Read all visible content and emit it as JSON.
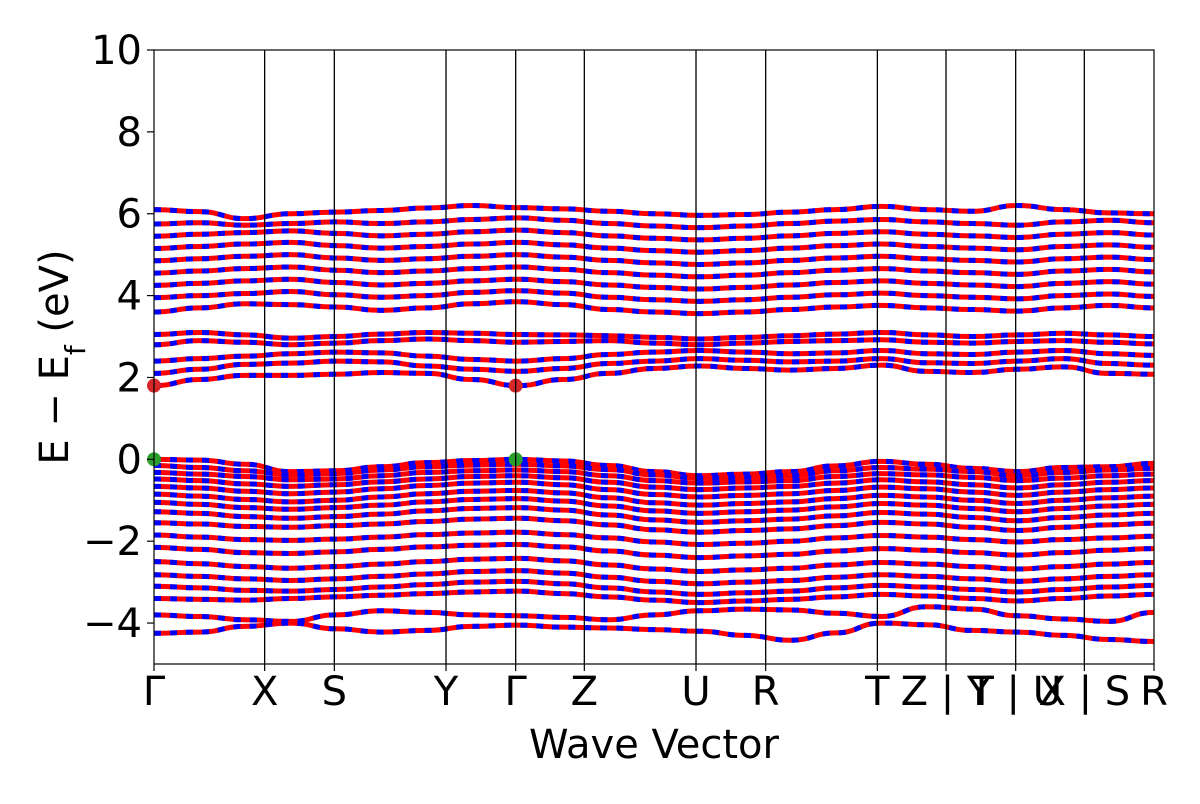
{
  "chart_data": {
    "type": "line",
    "xlabel": "Wave Vector",
    "ylabel": "E − E",
    "ylabel_subscript": "f",
    "ylabel_unit": " (eV)",
    "ylim": [
      -5,
      10
    ],
    "yticks": [
      -4,
      -2,
      0,
      2,
      4,
      6,
      8,
      10
    ],
    "ytick_labels": [
      "−4",
      "−2",
      "0",
      "2",
      "4",
      "6",
      "8",
      "10"
    ],
    "kpath_positions": [
      0,
      1.08,
      1.76,
      2.85,
      3.53,
      4.2,
      5.29,
      5.97,
      7.06,
      7.73,
      8.41,
      9.08,
      9.76
    ],
    "kpath_labels": [
      "Γ",
      "X",
      "S",
      "Y",
      "Γ",
      "Z",
      "U",
      "R",
      "T",
      "Z | Y",
      "T | U",
      "X | S",
      "R"
    ],
    "series_colors": [
      "#ff0000",
      "#0000ff"
    ],
    "marker_colors": {
      "cbm": "#d62728",
      "vbm": "#2ca02c"
    },
    "valence_bands": [
      [
        -0.0,
        -0.02,
        -0.12,
        -0.3,
        -0.28,
        -0.18,
        -0.08,
        -0.03,
        0.0,
        -0.04,
        -0.15,
        -0.3,
        -0.4,
        -0.36,
        -0.3,
        -0.16,
        -0.05,
        -0.12,
        -0.22,
        -0.3,
        -0.2,
        -0.18,
        -0.1
      ],
      [
        -0.15,
        -0.2,
        -0.28,
        -0.38,
        -0.35,
        -0.26,
        -0.18,
        -0.14,
        -0.12,
        -0.16,
        -0.25,
        -0.38,
        -0.46,
        -0.44,
        -0.4,
        -0.28,
        -0.2,
        -0.24,
        -0.3,
        -0.4,
        -0.32,
        -0.26,
        -0.22
      ],
      [
        -0.32,
        -0.36,
        -0.42,
        -0.5,
        -0.48,
        -0.4,
        -0.32,
        -0.28,
        -0.26,
        -0.3,
        -0.4,
        -0.52,
        -0.58,
        -0.55,
        -0.52,
        -0.42,
        -0.35,
        -0.38,
        -0.44,
        -0.52,
        -0.46,
        -0.4,
        -0.36
      ],
      [
        -0.48,
        -0.52,
        -0.6,
        -0.66,
        -0.62,
        -0.55,
        -0.48,
        -0.42,
        -0.4,
        -0.45,
        -0.56,
        -0.68,
        -0.74,
        -0.7,
        -0.66,
        -0.58,
        -0.5,
        -0.55,
        -0.62,
        -0.7,
        -0.62,
        -0.56,
        -0.52
      ],
      [
        -0.66,
        -0.7,
        -0.78,
        -0.84,
        -0.8,
        -0.72,
        -0.64,
        -0.58,
        -0.56,
        -0.62,
        -0.74,
        -0.86,
        -0.92,
        -0.88,
        -0.84,
        -0.76,
        -0.68,
        -0.72,
        -0.8,
        -0.88,
        -0.8,
        -0.74,
        -0.7
      ],
      [
        -0.85,
        -0.9,
        -0.98,
        -1.04,
        -1.0,
        -0.92,
        -0.84,
        -0.78,
        -0.76,
        -0.82,
        -0.94,
        -1.06,
        -1.12,
        -1.08,
        -1.04,
        -0.96,
        -0.88,
        -0.92,
        -1.0,
        -1.08,
        -1.0,
        -0.94,
        -0.9
      ],
      [
        -1.05,
        -1.1,
        -1.18,
        -1.22,
        -1.18,
        -1.12,
        -1.04,
        -0.98,
        -0.96,
        -1.02,
        -1.14,
        -1.26,
        -1.32,
        -1.28,
        -1.24,
        -1.16,
        -1.08,
        -1.12,
        -1.2,
        -1.28,
        -1.2,
        -1.14,
        -1.1
      ],
      [
        -1.28,
        -1.32,
        -1.4,
        -1.44,
        -1.4,
        -1.34,
        -1.26,
        -1.2,
        -1.18,
        -1.24,
        -1.36,
        -1.48,
        -1.54,
        -1.5,
        -1.46,
        -1.38,
        -1.3,
        -1.34,
        -1.42,
        -1.5,
        -1.42,
        -1.36,
        -1.32
      ],
      [
        -1.55,
        -1.58,
        -1.64,
        -1.66,
        -1.62,
        -1.58,
        -1.52,
        -1.46,
        -1.44,
        -1.5,
        -1.6,
        -1.72,
        -1.78,
        -1.74,
        -1.7,
        -1.62,
        -1.54,
        -1.58,
        -1.66,
        -1.74,
        -1.66,
        -1.6,
        -1.56
      ],
      [
        -1.85,
        -1.9,
        -1.96,
        -1.98,
        -1.95,
        -1.9,
        -1.84,
        -1.8,
        -1.78,
        -1.84,
        -1.92,
        -2.02,
        -2.08,
        -2.05,
        -2.0,
        -1.92,
        -1.86,
        -1.9,
        -1.96,
        -2.02,
        -1.96,
        -1.92,
        -1.88
      ],
      [
        -2.15,
        -2.2,
        -2.28,
        -2.3,
        -2.26,
        -2.2,
        -2.14,
        -2.1,
        -2.08,
        -2.14,
        -2.24,
        -2.34,
        -2.4,
        -2.36,
        -2.32,
        -2.24,
        -2.18,
        -2.22,
        -2.28,
        -2.34,
        -2.28,
        -2.22,
        -2.18
      ],
      [
        -2.5,
        -2.55,
        -2.62,
        -2.66,
        -2.62,
        -2.56,
        -2.5,
        -2.44,
        -2.42,
        -2.48,
        -2.58,
        -2.68,
        -2.74,
        -2.7,
        -2.66,
        -2.58,
        -2.52,
        -2.56,
        -2.62,
        -2.68,
        -2.62,
        -2.56,
        -2.52
      ],
      [
        -2.82,
        -2.86,
        -2.92,
        -2.96,
        -2.92,
        -2.86,
        -2.8,
        -2.74,
        -2.72,
        -2.78,
        -2.88,
        -2.98,
        -3.04,
        -3.0,
        -2.96,
        -2.88,
        -2.82,
        -2.86,
        -2.92,
        -2.98,
        -2.92,
        -2.86,
        -2.82
      ],
      [
        -3.1,
        -3.14,
        -3.2,
        -3.22,
        -3.18,
        -3.12,
        -3.06,
        -3.0,
        -2.98,
        -3.04,
        -3.14,
        -3.24,
        -3.3,
        -3.26,
        -3.22,
        -3.14,
        -3.08,
        -3.12,
        -3.18,
        -3.24,
        -3.18,
        -3.12,
        -3.08
      ],
      [
        -3.4,
        -3.42,
        -3.44,
        -3.4,
        -3.36,
        -3.32,
        -3.28,
        -3.24,
        -3.22,
        -3.28,
        -3.36,
        -3.44,
        -3.5,
        -3.46,
        -3.42,
        -3.36,
        -3.3,
        -3.34,
        -3.4,
        -3.46,
        -3.4,
        -3.34,
        -3.3
      ],
      [
        -3.8,
        -3.84,
        -3.92,
        -3.96,
        -3.8,
        -3.7,
        -3.74,
        -3.8,
        -3.82,
        -3.86,
        -3.92,
        -3.8,
        -3.7,
        -3.66,
        -3.68,
        -3.76,
        -3.84,
        -3.6,
        -3.66,
        -3.82,
        -3.9,
        -3.96,
        -3.74
      ],
      [
        -4.25,
        -4.22,
        -4.08,
        -4.0,
        -4.14,
        -4.22,
        -4.18,
        -4.08,
        -4.05,
        -4.1,
        -4.12,
        -4.16,
        -4.2,
        -4.3,
        -4.42,
        -4.24,
        -4.0,
        -4.04,
        -4.18,
        -4.22,
        -4.3,
        -4.4,
        -4.45
      ]
    ],
    "conduction_bands": [
      [
        1.8,
        1.95,
        2.05,
        2.05,
        2.08,
        2.12,
        2.1,
        1.95,
        1.8,
        1.95,
        2.1,
        2.22,
        2.28,
        2.22,
        2.18,
        2.22,
        2.3,
        2.15,
        2.12,
        2.2,
        2.26,
        2.1,
        2.08
      ],
      [
        2.1,
        2.2,
        2.32,
        2.35,
        2.4,
        2.38,
        2.28,
        2.2,
        2.15,
        2.22,
        2.34,
        2.4,
        2.46,
        2.42,
        2.38,
        2.4,
        2.46,
        2.36,
        2.34,
        2.4,
        2.46,
        2.34,
        2.3
      ],
      [
        2.4,
        2.46,
        2.52,
        2.58,
        2.62,
        2.6,
        2.52,
        2.44,
        2.4,
        2.46,
        2.56,
        2.62,
        2.66,
        2.62,
        2.58,
        2.6,
        2.66,
        2.58,
        2.56,
        2.62,
        2.66,
        2.58,
        2.54
      ],
      [
        2.8,
        2.9,
        2.86,
        2.8,
        2.84,
        2.9,
        2.94,
        2.9,
        2.86,
        2.88,
        2.9,
        2.84,
        2.8,
        2.84,
        2.88,
        2.9,
        2.92,
        2.86,
        2.84,
        2.88,
        2.9,
        2.86,
        2.82
      ],
      [
        3.05,
        3.1,
        3.04,
        2.96,
        3.0,
        3.06,
        3.1,
        3.08,
        3.05,
        3.04,
        3.02,
        2.98,
        2.94,
        2.98,
        3.02,
        3.06,
        3.1,
        3.04,
        3.0,
        3.04,
        3.08,
        3.04,
        3.0
      ],
      [
        3.6,
        3.7,
        3.8,
        3.78,
        3.72,
        3.64,
        3.7,
        3.8,
        3.85,
        3.78,
        3.66,
        3.6,
        3.56,
        3.6,
        3.66,
        3.72,
        3.76,
        3.7,
        3.66,
        3.62,
        3.7,
        3.76,
        3.7
      ],
      [
        3.95,
        4.0,
        4.05,
        4.1,
        4.02,
        3.96,
        4.0,
        4.08,
        4.12,
        4.06,
        3.96,
        3.9,
        3.86,
        3.9,
        3.96,
        4.02,
        4.06,
        4.0,
        3.96,
        3.92,
        4.0,
        4.04,
        3.98
      ],
      [
        4.25,
        4.3,
        4.36,
        4.4,
        4.32,
        4.26,
        4.3,
        4.36,
        4.4,
        4.34,
        4.26,
        4.2,
        4.16,
        4.2,
        4.26,
        4.32,
        4.36,
        4.3,
        4.26,
        4.22,
        4.3,
        4.34,
        4.28
      ],
      [
        4.55,
        4.6,
        4.66,
        4.7,
        4.62,
        4.56,
        4.6,
        4.66,
        4.7,
        4.64,
        4.56,
        4.5,
        4.46,
        4.5,
        4.56,
        4.62,
        4.66,
        4.6,
        4.56,
        4.52,
        4.6,
        4.64,
        4.58
      ],
      [
        4.85,
        4.9,
        4.96,
        5.0,
        4.92,
        4.86,
        4.9,
        4.96,
        5.0,
        4.94,
        4.86,
        4.8,
        4.76,
        4.8,
        4.86,
        4.92,
        4.96,
        4.9,
        4.86,
        4.82,
        4.9,
        4.94,
        4.88
      ],
      [
        5.15,
        5.2,
        5.26,
        5.3,
        5.22,
        5.16,
        5.2,
        5.26,
        5.3,
        5.24,
        5.16,
        5.1,
        5.06,
        5.1,
        5.16,
        5.22,
        5.26,
        5.2,
        5.16,
        5.12,
        5.2,
        5.24,
        5.18
      ],
      [
        5.45,
        5.5,
        5.54,
        5.58,
        5.52,
        5.46,
        5.5,
        5.56,
        5.6,
        5.54,
        5.46,
        5.4,
        5.36,
        5.4,
        5.46,
        5.52,
        5.56,
        5.5,
        5.46,
        5.42,
        5.5,
        5.54,
        5.48
      ],
      [
        5.75,
        5.78,
        5.72,
        5.76,
        5.8,
        5.76,
        5.8,
        5.86,
        5.9,
        5.84,
        5.76,
        5.7,
        5.66,
        5.7,
        5.76,
        5.82,
        5.86,
        5.8,
        5.76,
        5.72,
        5.8,
        5.84,
        5.78
      ],
      [
        6.1,
        6.05,
        5.88,
        6.0,
        6.04,
        6.08,
        6.14,
        6.2,
        6.15,
        6.12,
        6.06,
        6.0,
        5.96,
        5.98,
        6.04,
        6.1,
        6.18,
        6.1,
        6.06,
        6.2,
        6.1,
        6.02,
        6.0
      ]
    ],
    "markers": [
      {
        "kind": "cbm",
        "x": 0,
        "y": 1.8
      },
      {
        "kind": "cbm",
        "x": 3.53,
        "y": 1.8
      },
      {
        "kind": "vbm",
        "x": 0,
        "y": 0.0
      },
      {
        "kind": "vbm",
        "x": 3.53,
        "y": 0.0
      }
    ]
  }
}
